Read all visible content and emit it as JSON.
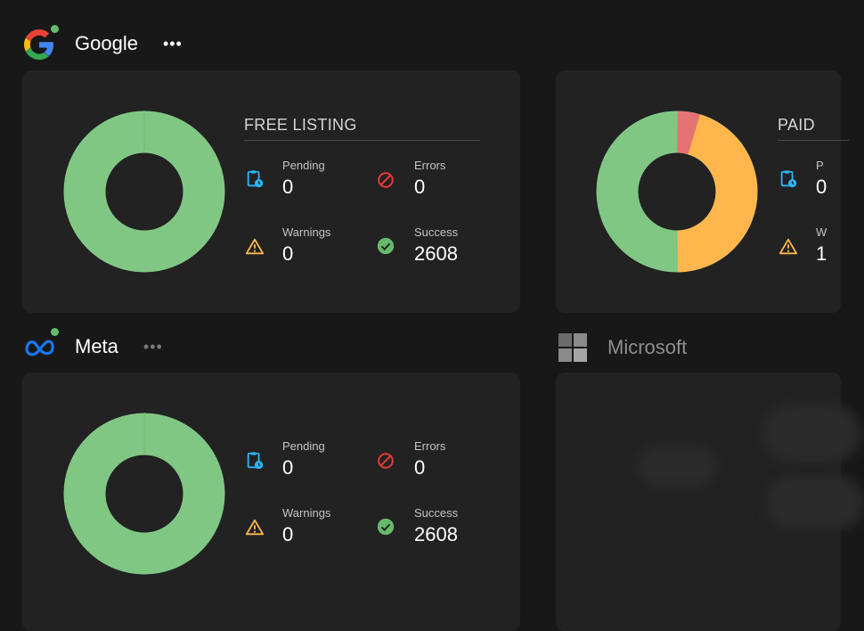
{
  "google": {
    "name": "Google",
    "more": "•••",
    "free": {
      "title": "FREE LISTING",
      "pending_label": "Pending",
      "pending": "0",
      "errors_label": "Errors",
      "errors": "0",
      "warnings_label": "Warnings",
      "warnings": "0",
      "success_label": "Success",
      "success": "2608"
    },
    "paid": {
      "title": "PAID",
      "pending_label": "P",
      "pending": "0",
      "warnings_label": "W",
      "warnings": "1"
    }
  },
  "meta": {
    "name": "Meta",
    "more": "•••",
    "pending_label": "Pending",
    "pending": "0",
    "errors_label": "Errors",
    "errors": "0",
    "warnings_label": "Warnings",
    "warnings": "0",
    "success_label": "Success",
    "success": "2608"
  },
  "microsoft": {
    "name": "Microsoft"
  },
  "colors": {
    "success": "#81c784",
    "warning": "#ffb74d",
    "error": "#e57373",
    "pending": "#29b6f6"
  }
}
